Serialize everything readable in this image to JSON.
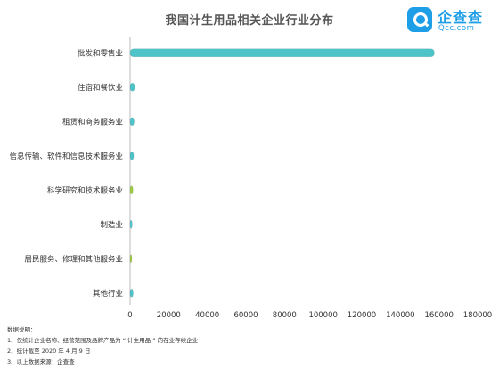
{
  "title": "我国计生用品相关企业行业分布",
  "logo": {
    "name": "企查查",
    "sub": "Qcc.com",
    "icon": "magnifier-logo-icon",
    "color": "#1f9ee8"
  },
  "notes": {
    "heading": "数据说明：",
    "lines": [
      "1、仅统计企业名称、经营范围及品牌产品为 “ 计生用品 ” 的在业存续企业",
      "2、统计截至 2020 年 4 月 9 日",
      "3、以上数据来源：企查查"
    ]
  },
  "colors": {
    "teal": "#4ec4c8",
    "lime": "#9ccc3c",
    "axis": "#bbbbbb"
  },
  "chart_data": {
    "type": "bar",
    "orientation": "horizontal",
    "title": "我国计生用品相关企业行业分布",
    "categories": [
      "批发和零售业",
      "住宿和餐饮业",
      "租赁和商务服务业",
      "信息传输、软件和信息技术服务业",
      "科学研究和技术服务业",
      "制造业",
      "居民服务、修理和其他服务业",
      "其他行业"
    ],
    "values": [
      157600,
      2400,
      2100,
      1900,
      1500,
      1100,
      700,
      1600
    ],
    "bar_colors": [
      "#4ec4c8",
      "#4ec4c8",
      "#4ec4c8",
      "#4ec4c8",
      "#9ccc3c",
      "#4ec4c8",
      "#9ccc3c",
      "#4ec4c8"
    ],
    "xlim": [
      0,
      180000
    ],
    "xticks": [
      0,
      20000,
      40000,
      60000,
      80000,
      100000,
      120000,
      140000,
      160000,
      180000
    ],
    "xtick_labels": [
      "0",
      "20000",
      "40000",
      "60000",
      "80000",
      "100000",
      "120000",
      "140000",
      "160000",
      "180000"
    ],
    "grid": false,
    "legend": "none"
  }
}
